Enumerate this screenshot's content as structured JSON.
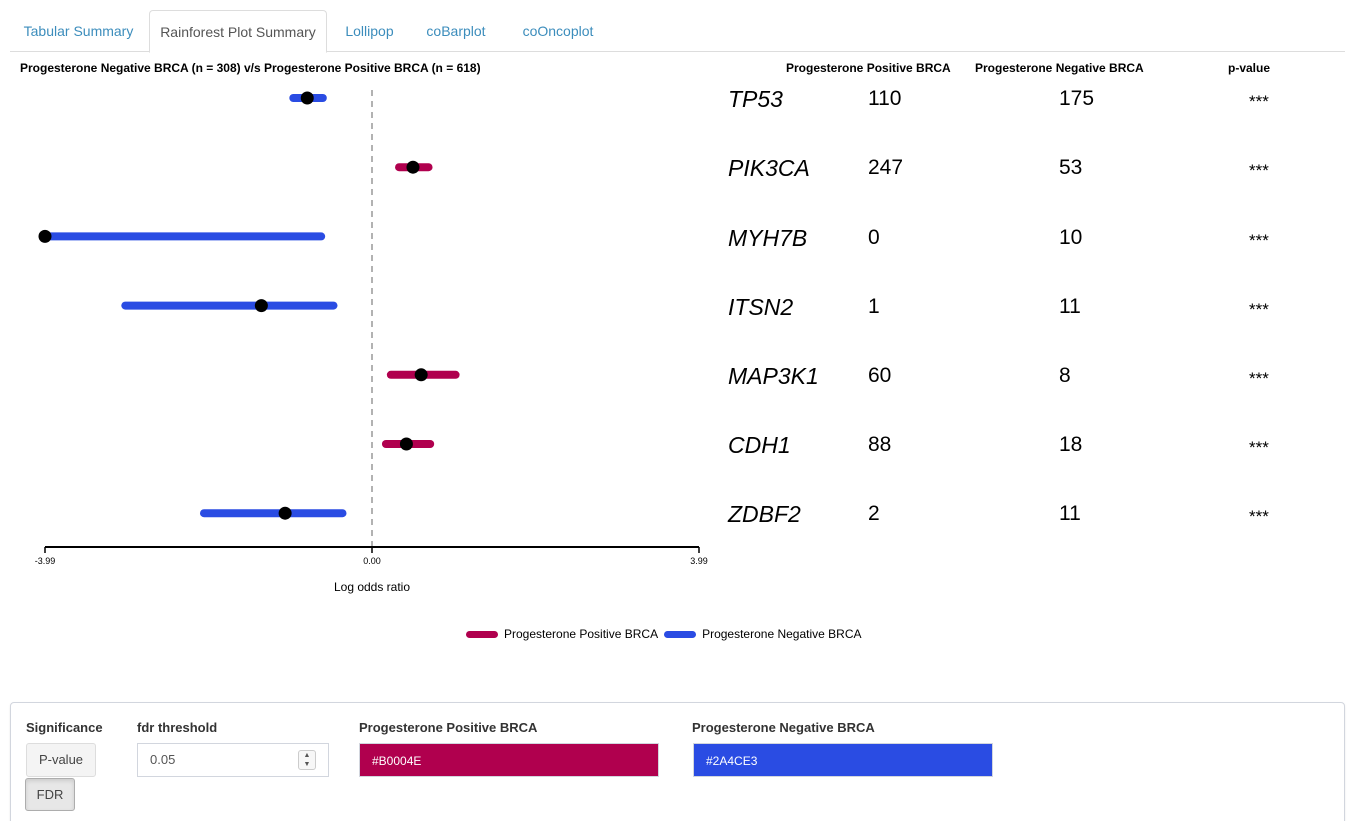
{
  "tabs": [
    {
      "label": "Tabular Summary",
      "active": false
    },
    {
      "label": "Rainforest Plot Summary",
      "active": true
    },
    {
      "label": "Lollipop",
      "active": false
    },
    {
      "label": "coBarplot",
      "active": false
    },
    {
      "label": "coOncoplot",
      "active": false
    }
  ],
  "plot": {
    "title": "Progesterone Negative BRCA (n = 308) v/s Progesterone Positive BRCA  (n = 618)",
    "col_positive": "Progesterone Positive BRCA",
    "col_negative": "Progesterone Negative BRCA",
    "col_pvalue": "p-value",
    "xlabel": "Log odds ratio",
    "ticks": [
      "-3.99",
      "0.00",
      "3.99"
    ]
  },
  "colors": {
    "positive": "#B0004E",
    "negative": "#2A4CE3",
    "point": "#000000",
    "tab_link": "#3c8dbc"
  },
  "chart_data": {
    "type": "forest",
    "xlim": [
      -3.99,
      3.99
    ],
    "xlabel": "Log odds ratio",
    "rows": [
      {
        "gene": "TP53",
        "positive": "110",
        "negative": "175",
        "pvalue": "***",
        "or": -0.79,
        "lo": -0.96,
        "hi": -0.6,
        "group": "negative"
      },
      {
        "gene": "PIK3CA",
        "positive": "247",
        "negative": "53",
        "pvalue": "***",
        "or": 0.5,
        "lo": 0.33,
        "hi": 0.69,
        "group": "positive"
      },
      {
        "gene": "MYH7B",
        "positive": "0",
        "negative": "10",
        "pvalue": "***",
        "or": -3.99,
        "lo": -3.99,
        "hi": -0.62,
        "group": "negative"
      },
      {
        "gene": "ITSN2",
        "positive": "1",
        "negative": "11",
        "pvalue": "***",
        "or": -1.35,
        "lo": -3.01,
        "hi": -0.47,
        "group": "negative"
      },
      {
        "gene": "MAP3K1",
        "positive": "60",
        "negative": "8",
        "pvalue": "***",
        "or": 0.6,
        "lo": 0.23,
        "hi": 1.02,
        "group": "positive"
      },
      {
        "gene": "CDH1",
        "positive": "88",
        "negative": "18",
        "pvalue": "***",
        "or": 0.42,
        "lo": 0.17,
        "hi": 0.71,
        "group": "positive"
      },
      {
        "gene": "ZDBF2",
        "positive": "2",
        "negative": "11",
        "pvalue": "***",
        "or": -1.06,
        "lo": -2.05,
        "hi": -0.36,
        "group": "negative"
      }
    ]
  },
  "legend": {
    "positive_label": "Progesterone Positive BRCA",
    "negative_label": "Progesterone Negative BRCA"
  },
  "controls": {
    "significance_label": "Significance",
    "pvalue_button": "P-value",
    "fdr_button": "FDR",
    "selected_significance": "FDR",
    "fdr_label": "fdr threshold",
    "fdr_value": "0.05",
    "spinner_up": "▲",
    "spinner_down": "▼",
    "positive_color_label": "Progesterone Positive BRCA",
    "positive_color_value": "#B0004E",
    "negative_color_label": "Progesterone Negative BRCA",
    "negative_color_value": "#2A4CE3"
  }
}
